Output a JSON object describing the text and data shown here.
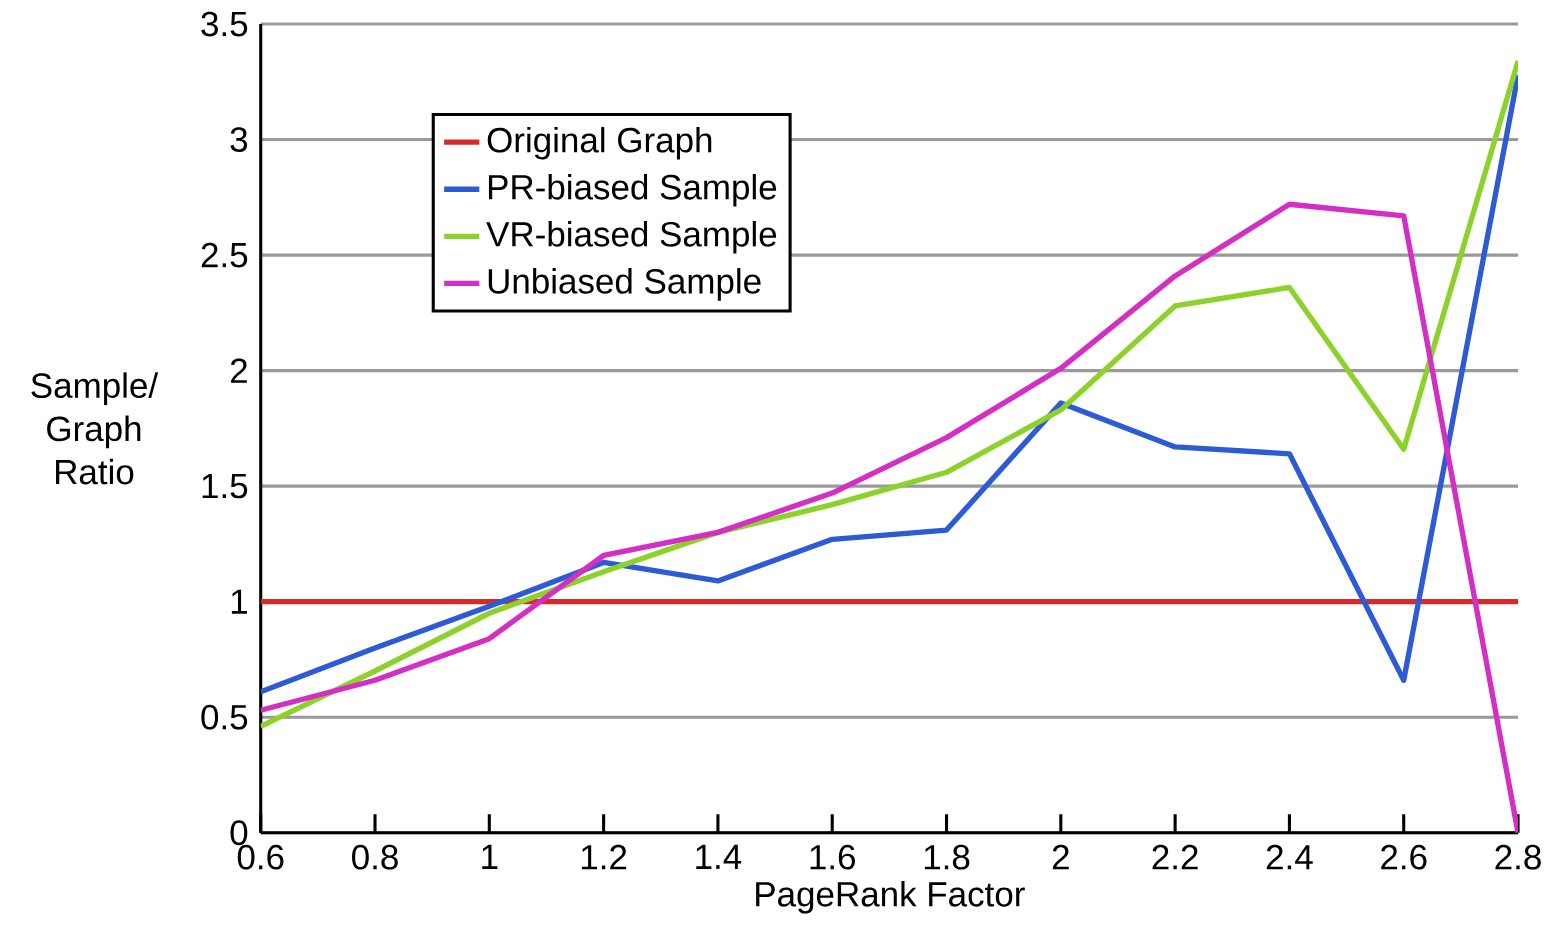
{
  "chart_data": {
    "type": "line",
    "xlabel": "PageRank Factor",
    "ylabel": "Sample/ Graph Ratio",
    "x": [
      0.6,
      0.8,
      1,
      1.2,
      1.4,
      1.6,
      1.8,
      2,
      2.2,
      2.4,
      2.6,
      2.8
    ],
    "series": [
      {
        "name": "Original Graph",
        "color": "#d62a2a",
        "values": [
          1,
          1,
          1,
          1,
          1,
          1,
          1,
          1,
          1,
          1,
          1,
          1
        ]
      },
      {
        "name": "PR-biased Sample",
        "color": "#2d5bd6",
        "values": [
          0.61,
          0.8,
          0.98,
          1.17,
          1.09,
          1.27,
          1.31,
          1.86,
          1.67,
          1.64,
          0.66,
          3.28
        ]
      },
      {
        "name": "VR-biased Sample",
        "color": "#8cd22a",
        "values": [
          0.46,
          0.7,
          0.95,
          1.13,
          1.3,
          1.42,
          1.56,
          1.83,
          2.28,
          2.36,
          1.66,
          3.34
        ]
      },
      {
        "name": "Unbiased Sample",
        "color": "#d42ec4",
        "values": [
          0.53,
          0.66,
          0.84,
          1.2,
          1.3,
          1.47,
          1.71,
          2.01,
          2.41,
          2.72,
          2.67,
          0
        ]
      }
    ],
    "xlim": [
      0.6,
      2.8
    ],
    "ylim": [
      0,
      3.5
    ],
    "xticks": [
      0.6,
      0.8,
      1,
      1.2,
      1.4,
      1.6,
      1.8,
      2,
      2.2,
      2.4,
      2.6,
      2.8
    ],
    "yticks": [
      0,
      0.5,
      1,
      1.5,
      2,
      2.5,
      3,
      3.5
    ],
    "grid": "y",
    "legend": "top left",
    "marker": "none",
    "line_style": "solid"
  }
}
